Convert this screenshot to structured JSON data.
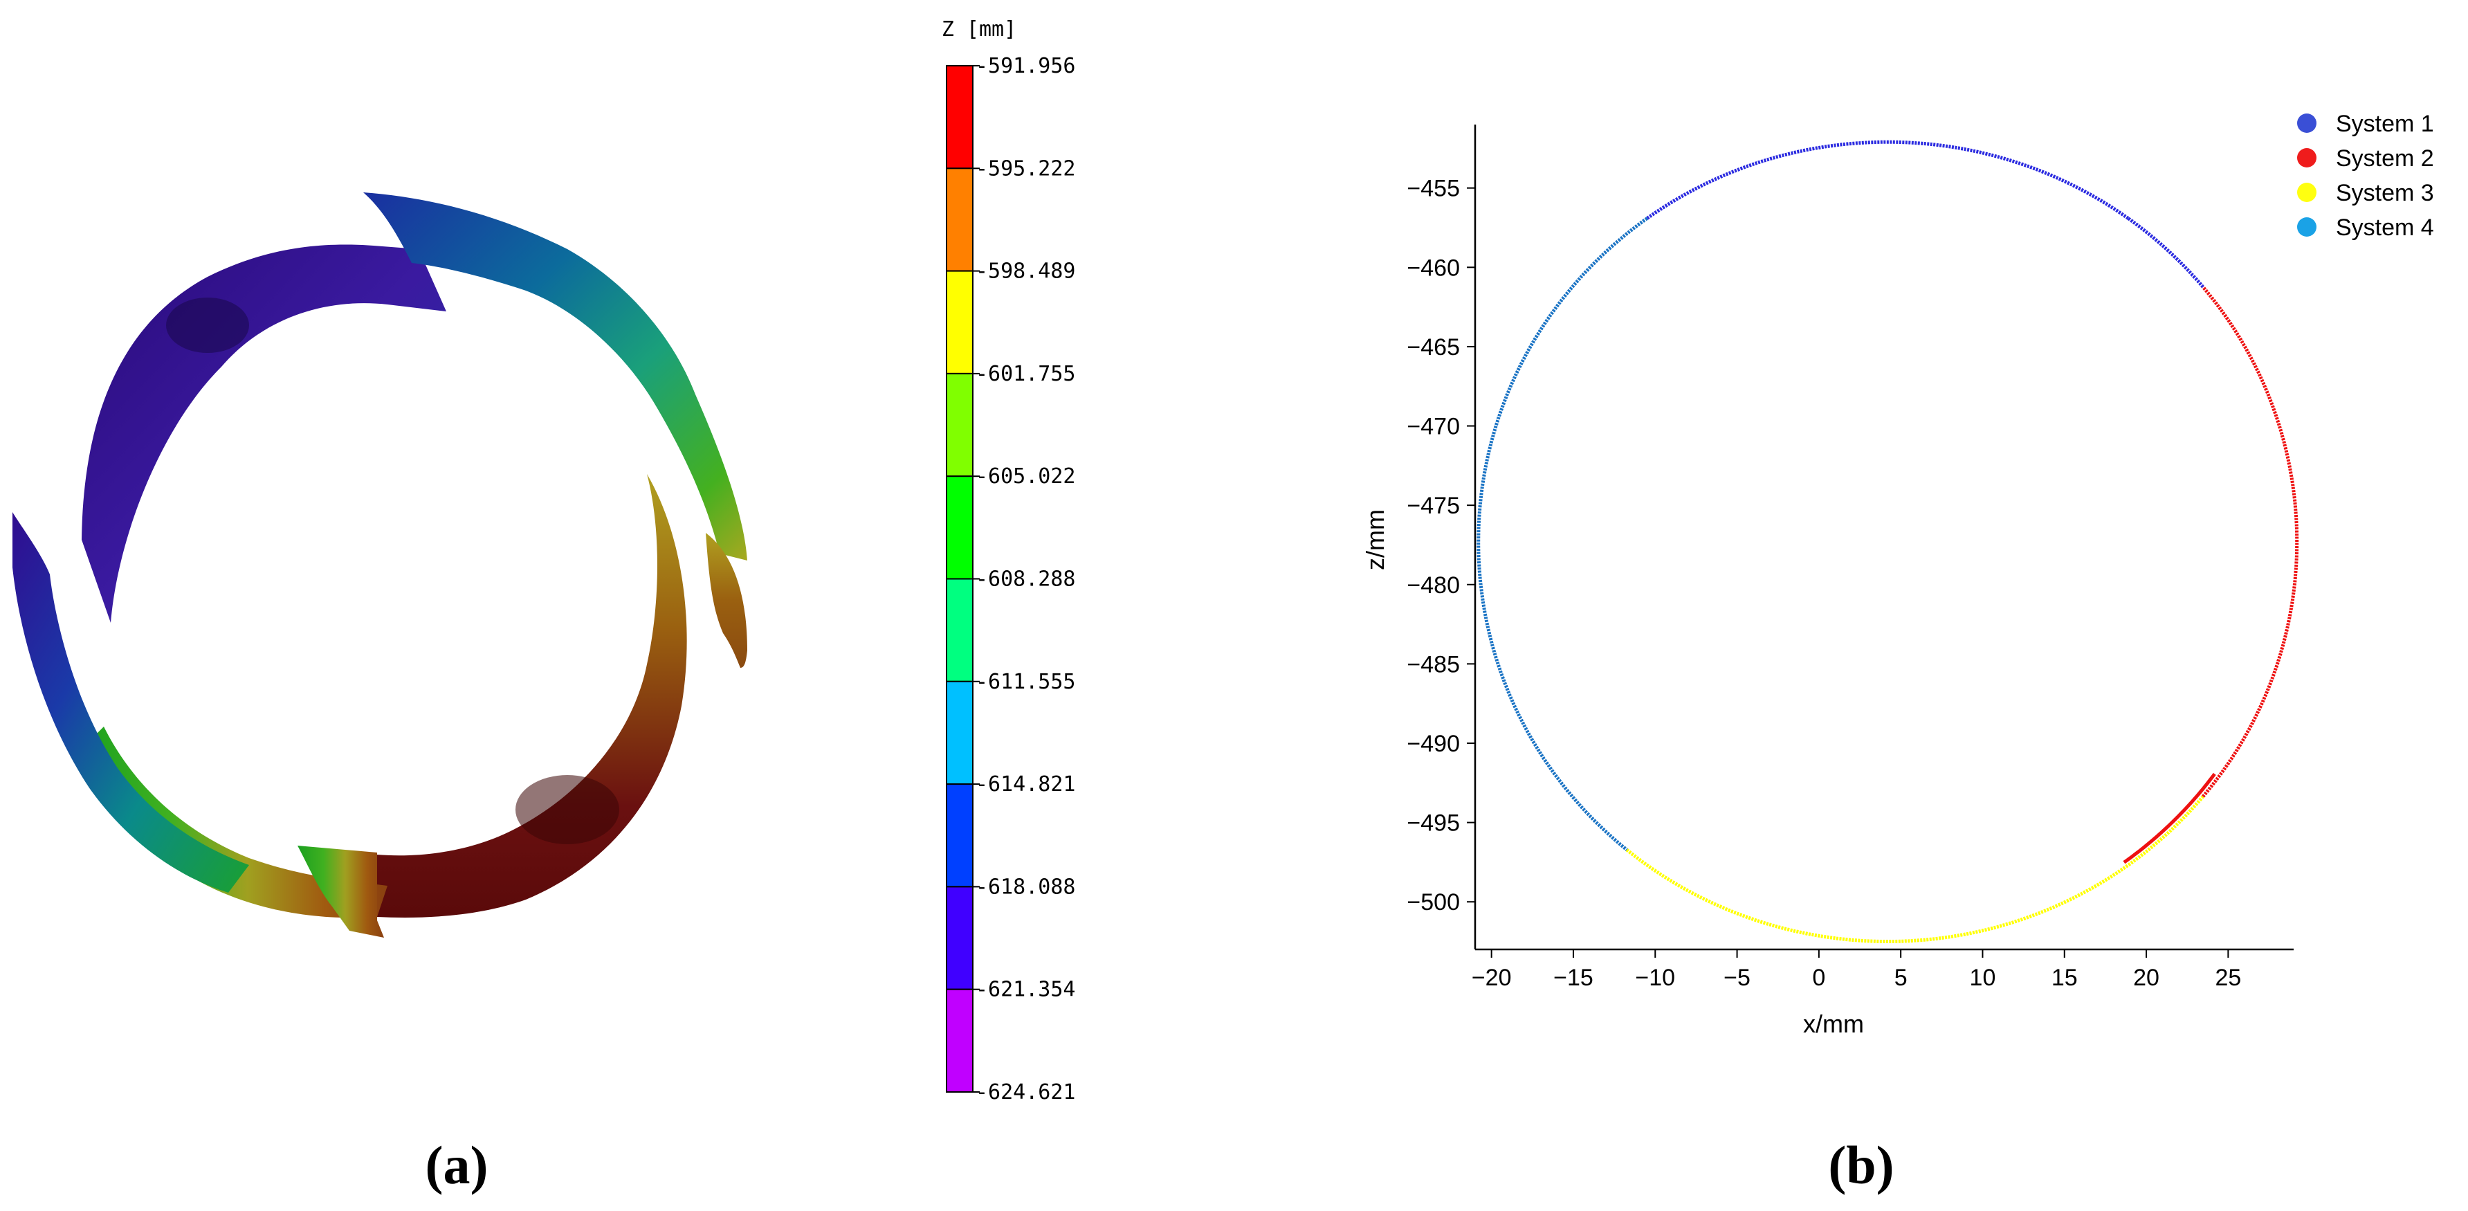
{
  "panel_a": {
    "label": "(a)",
    "colorbar": {
      "title": "Z [mm]",
      "ticks": [
        "-591.956",
        "-595.222",
        "-598.489",
        "-601.755",
        "-605.022",
        "-608.288",
        "-611.555",
        "-614.821",
        "-618.088",
        "-621.354",
        "-624.621"
      ],
      "colors": [
        "#ff0000",
        "#ff8000",
        "#ffff00",
        "#80ff00",
        "#00ff00",
        "#00ff80",
        "#00c0ff",
        "#0040ff",
        "#4000ff",
        "#c000ff"
      ]
    }
  },
  "panel_b": {
    "label": "(b)",
    "legend": [
      {
        "name": "System 1",
        "color": "#3a4fd6"
      },
      {
        "name": "System 2",
        "color": "#ef1c1c"
      },
      {
        "name": "System 3",
        "color": "#ffff10"
      },
      {
        "name": "System 4",
        "color": "#1aa2e6"
      }
    ]
  },
  "chart_data": [
    {
      "type": "scatter",
      "title": "",
      "xlabel": "x/mm",
      "ylabel": "z/mm",
      "xlim": [
        -21,
        29
      ],
      "ylim": [
        -503,
        -451
      ],
      "xticks": [
        -20,
        -15,
        -10,
        -5,
        0,
        5,
        10,
        15,
        20,
        25
      ],
      "yticks": [
        -455,
        -460,
        -465,
        -470,
        -475,
        -480,
        -485,
        -490,
        -495,
        -500
      ],
      "grid": false,
      "legend_position": "top-right",
      "shape": {
        "center": [
          4.2,
          -477.3
        ],
        "radius": [
          25,
          25.2
        ]
      },
      "series": [
        {
          "name": "System 1",
          "color": "#2b2be0",
          "x_range": [
            -10.5,
            24.5
          ],
          "side": "top"
        },
        {
          "name": "System 2",
          "color": "#ee1111",
          "x_range": [
            16.5,
            29.2
          ],
          "side": "right-lower"
        },
        {
          "name": "System 3",
          "color": "#ffff00",
          "x_range": [
            -13.5,
            24.5
          ],
          "side": "bottom"
        },
        {
          "name": "System 4",
          "color": "#1a73c4",
          "x_range": [
            -20.8,
            -10.0
          ],
          "side": "left"
        }
      ]
    }
  ]
}
